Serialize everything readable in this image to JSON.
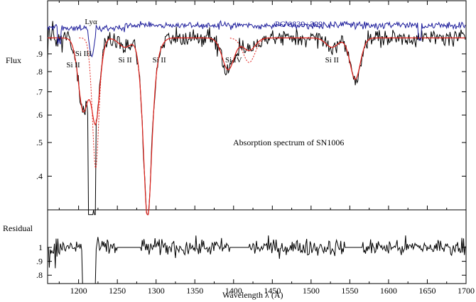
{
  "chart_data": {
    "type": "line",
    "xlabel": "Wavelength λ  (Å)",
    "x_ticks": [
      1200,
      1250,
      1300,
      1350,
      1400,
      1450,
      1500,
      1550,
      1600,
      1650,
      1700
    ],
    "xlim": [
      1160,
      1700
    ],
    "top_panel": {
      "ylabel": "Flux",
      "y_ticks": [
        "1",
        ".9",
        ".8",
        ".7",
        ".6",
        ".5",
        ".4"
      ],
      "y_tick_values": [
        1,
        0.9,
        0.8,
        0.7,
        0.6,
        0.5,
        0.4
      ],
      "ylim_log": [
        0.32,
        1.28
      ],
      "comparison_label": "PG 0839+399",
      "annotation": "Absorption spectrum of SN1006",
      "line_labels": [
        {
          "text": "Lyα",
          "x": 1216
        },
        {
          "text": "Si III",
          "x": 1206
        },
        {
          "text": "Si II",
          "x": 1193
        },
        {
          "text": "Si II",
          "x": 1260
        },
        {
          "text": "Si II",
          "x": 1304
        },
        {
          "text": "Si IV",
          "x": 1400
        },
        {
          "text": "Si II",
          "x": 1527
        }
      ],
      "series": [
        {
          "role": "observed",
          "color": "#000000"
        },
        {
          "role": "model",
          "color": "#e0211b"
        },
        {
          "role": "comparison",
          "color": "#1a1a9a"
        }
      ],
      "model_dips": [
        {
          "center": 1206,
          "depth": 0.38,
          "width": 7,
          "dotted": false
        },
        {
          "center": 1222,
          "depth": 0.42,
          "width": 6,
          "dotted": false
        },
        {
          "center": 1260,
          "depth": 0.06,
          "width": 8,
          "dotted": false
        },
        {
          "center": 1289,
          "depth": 0.7,
          "width": 7,
          "dotted": false
        },
        {
          "center": 1304,
          "depth": 0.04,
          "width": 6,
          "dotted": false
        },
        {
          "center": 1393,
          "depth": 0.19,
          "width": 8,
          "dotted": false
        },
        {
          "center": 1420,
          "depth": 0.08,
          "width": 8,
          "dotted": false
        },
        {
          "center": 1527,
          "depth": 0.06,
          "width": 8,
          "dotted": false
        },
        {
          "center": 1557,
          "depth": 0.24,
          "width": 7,
          "dotted": false
        }
      ]
    },
    "bottom_panel": {
      "ylabel": "Residual",
      "y_ticks": [
        "1",
        ".9",
        ".8"
      ],
      "y_tick_values": [
        1,
        0.9,
        0.8
      ],
      "ylim": [
        0.74,
        1.27
      ],
      "gaps": [
        [
          1250,
          1280
        ],
        [
          1395,
          1420
        ],
        [
          1543,
          1566
        ]
      ]
    }
  }
}
